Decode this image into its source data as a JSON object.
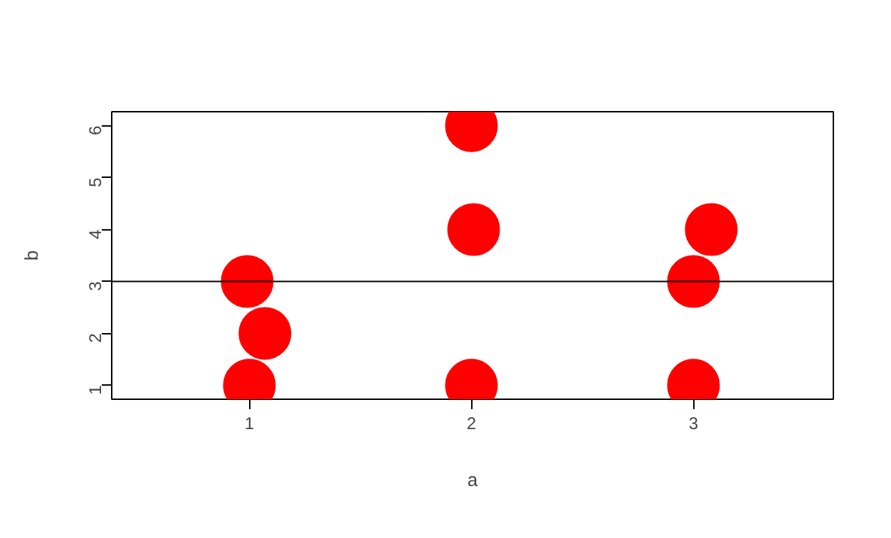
{
  "chart_data": {
    "type": "scatter",
    "xlabel": "a",
    "ylabel": "b",
    "x": [
      1,
      0.99,
      1.07,
      2,
      2.01,
      2,
      3,
      3,
      3.08
    ],
    "values": [
      1,
      3,
      2,
      6,
      4,
      1,
      1,
      3,
      4
    ],
    "color": "#ff0000",
    "marker": "circle",
    "grid": false,
    "legend": false,
    "xlim": [
      0.38,
      3.63
    ],
    "ylim": [
      0.73,
      6.27
    ],
    "xticks": [
      1,
      2,
      3
    ],
    "yticks": [
      1,
      2,
      3,
      4,
      5,
      6
    ],
    "ref_lines": [
      {
        "axis": "y",
        "value": 3,
        "color": "#000000"
      }
    ]
  }
}
